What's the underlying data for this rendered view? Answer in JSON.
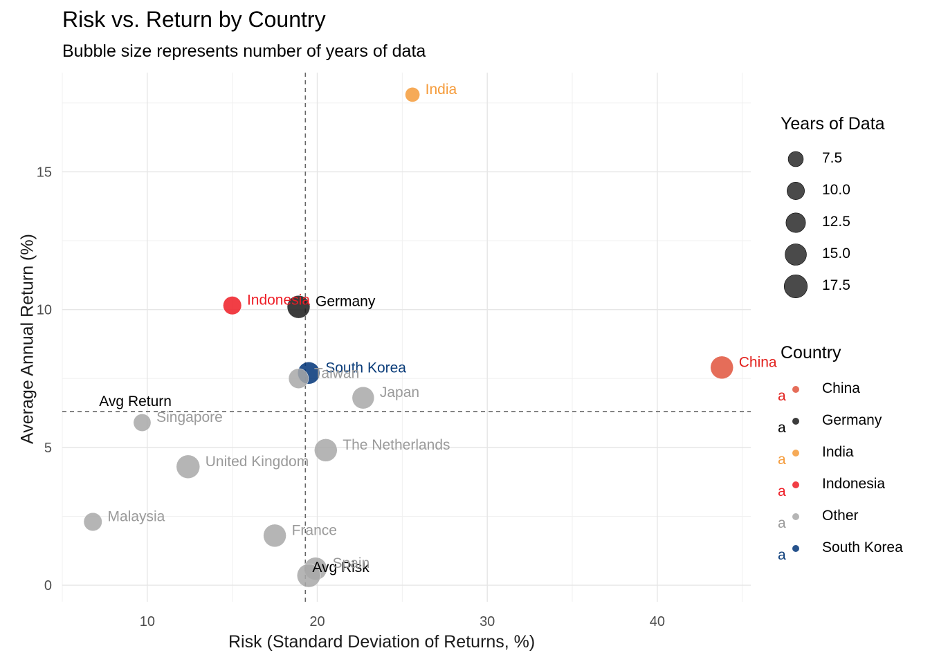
{
  "title": "Risk vs. Return by Country",
  "subtitle": "Bubble size represents number of years of data",
  "chart_data": {
    "type": "scatter",
    "title": "Risk vs. Return by Country",
    "subtitle": "Bubble size represents number of years of data",
    "xlabel": "Risk (Standard Deviation of Returns, %)",
    "ylabel": "Average Annual Return (%)",
    "xlim": [
      5,
      45.5
    ],
    "ylim": [
      -0.6,
      18.6
    ],
    "x_ticks": [
      10,
      20,
      30,
      40
    ],
    "y_ticks": [
      0,
      5,
      10,
      15
    ],
    "grid": true,
    "points": [
      {
        "label": "India",
        "group": "India",
        "x": 25.6,
        "y": 17.8,
        "years": 7
      },
      {
        "label": "Indonesia",
        "group": "Indonesia",
        "x": 15.0,
        "y": 10.15,
        "years": 11
      },
      {
        "label": "Germany",
        "group": "Germany",
        "x": 18.9,
        "y": 10.1,
        "years": 17
      },
      {
        "label": "China",
        "group": "China",
        "x": 43.8,
        "y": 7.9,
        "years": 17
      },
      {
        "label": "South Korea",
        "group": "South Korea",
        "x": 19.5,
        "y": 7.7,
        "years": 16
      },
      {
        "label": "Taiwan",
        "group": "Other",
        "x": 18.9,
        "y": 7.5,
        "years": 13
      },
      {
        "label": "Japan",
        "group": "Other",
        "x": 22.7,
        "y": 6.8,
        "years": 16
      },
      {
        "label": "Singapore",
        "group": "Other",
        "x": 9.7,
        "y": 5.9,
        "years": 10
      },
      {
        "label": "The Netherlands",
        "group": "Other",
        "x": 20.5,
        "y": 4.9,
        "years": 17
      },
      {
        "label": "United Kingdom",
        "group": "Other",
        "x": 12.4,
        "y": 4.3,
        "years": 18
      },
      {
        "label": "Malaysia",
        "group": "Other",
        "x": 6.8,
        "y": 2.3,
        "years": 11
      },
      {
        "label": "France",
        "group": "Other",
        "x": 17.5,
        "y": 1.8,
        "years": 17
      },
      {
        "label": "Spain",
        "group": "Other",
        "x": 19.9,
        "y": 0.6,
        "years": 17
      },
      {
        "label": "",
        "group": "Other",
        "x": 19.5,
        "y": 0.35,
        "years": 18
      }
    ],
    "reference_lines": [
      {
        "axis": "x",
        "value": 19.3,
        "label": "Avg Risk"
      },
      {
        "axis": "y",
        "value": 6.3,
        "label": "Avg Return"
      }
    ],
    "size_legend": {
      "title": "Years of Data",
      "values": [
        "7.5",
        "10.0",
        "12.5",
        "15.0",
        "17.5"
      ],
      "sizes": [
        7.5,
        10.0,
        12.5,
        15.0,
        17.5
      ]
    },
    "color_legend": {
      "title": "Country",
      "items": [
        {
          "name": "China",
          "color": "#E0533C"
        },
        {
          "name": "Germany",
          "color": "#1A1A1A"
        },
        {
          "name": "India",
          "color": "#F59B3A"
        },
        {
          "name": "Indonesia",
          "color": "#EE1C25"
        },
        {
          "name": "Other",
          "color": "#A8A8A8"
        },
        {
          "name": "South Korea",
          "color": "#003478"
        }
      ],
      "key_glyph": "a"
    },
    "colors": {
      "China": "#E0533C",
      "Germany": "#1A1A1A",
      "India": "#F59B3A",
      "Indonesia": "#EE1C25",
      "Other": "#A8A8A8",
      "South Korea": "#003478"
    },
    "label_colors": {
      "China": "#E2201C",
      "Germany": "#000000",
      "India": "#F59B3A",
      "Indonesia": "#EE1C25",
      "Other": "#9A9A9A",
      "South Korea": "#0B3D7A"
    }
  }
}
